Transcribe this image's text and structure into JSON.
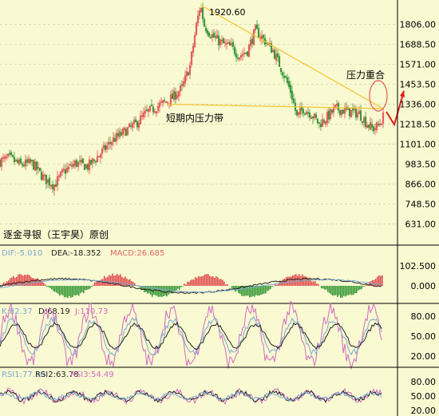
{
  "chart_data": {
    "type": "candlestick",
    "credit": "逐金寻银（王宇昊）原创",
    "main": {
      "y_ticks": [
        631.0,
        748.5,
        866.0,
        983.5,
        1101.0,
        1218.5,
        1336.0,
        1453.5,
        1571.0,
        1688.5,
        1806.0
      ],
      "y_tick_labels": [
        "631.00",
        "748.50",
        "866.00",
        "983.50",
        "1101.00",
        "1218.50",
        "1336.00",
        "1453.50",
        "1571.00",
        "1688.50",
        "1806.00"
      ],
      "ylim": [
        540,
        1930
      ],
      "peak_label": "1920.60",
      "annotations": {
        "short_term_resistance": "短期内压力带",
        "resistance_overlap": "压力重合"
      },
      "path_points": [
        [
          0,
          1000
        ],
        [
          12,
          1020
        ],
        [
          25,
          980
        ],
        [
          40,
          990
        ],
        [
          55,
          900
        ],
        [
          68,
          860
        ],
        [
          80,
          940
        ],
        [
          95,
          990
        ],
        [
          110,
          970
        ],
        [
          125,
          1040
        ],
        [
          140,
          1120
        ],
        [
          155,
          1170
        ],
        [
          170,
          1220
        ],
        [
          185,
          1290
        ],
        [
          200,
          1330
        ],
        [
          215,
          1370
        ],
        [
          228,
          1430
        ],
        [
          238,
          1560
        ],
        [
          246,
          1800
        ],
        [
          251,
          1920
        ],
        [
          256,
          1800
        ],
        [
          262,
          1760
        ],
        [
          270,
          1720
        ],
        [
          280,
          1690
        ],
        [
          290,
          1670
        ],
        [
          300,
          1620
        ],
        [
          310,
          1650
        ],
        [
          320,
          1770
        ],
        [
          330,
          1720
        ],
        [
          342,
          1650
        ],
        [
          355,
          1520
        ],
        [
          365,
          1400
        ],
        [
          372,
          1260
        ],
        [
          380,
          1310
        ],
        [
          390,
          1280
        ],
        [
          400,
          1220
        ],
        [
          410,
          1260
        ],
        [
          420,
          1310
        ],
        [
          430,
          1300
        ],
        [
          440,
          1290
        ],
        [
          450,
          1280
        ],
        [
          460,
          1220
        ],
        [
          467,
          1190
        ],
        [
          474,
          1210
        ],
        [
          480,
          1260
        ]
      ],
      "resistance_lines": {
        "trend": [
          [
            251,
            1920
          ],
          [
            480,
            1310
          ]
        ],
        "horizontal": [
          [
            210,
            1336
          ],
          [
            480,
            1310
          ]
        ]
      }
    },
    "macd": {
      "label_dif": "DIF:-5.010",
      "label_dea": "DEA:-18.352",
      "label_macd": "MACD:26.685",
      "y_ticks": [
        102.5,
        0.0
      ],
      "y_tick_labels": [
        "102.500",
        "0.000"
      ]
    },
    "kdj": {
      "label_k": "K:82.37",
      "label_d": "D:68.19",
      "label_j": "J:110.73",
      "y_ticks": [
        80,
        50,
        20
      ],
      "y_tick_labels": [
        "80.00",
        "50.00",
        "20.00"
      ]
    },
    "rsi": {
      "label_rsi1": "RSI1:77.50",
      "label_rsi2": "RSI2:63.78",
      "label_rsi3": "RSI3:54.49",
      "y_ticks": [
        80,
        50,
        20
      ],
      "y_tick_labels": [
        "80.00",
        "50.00",
        "20.00"
      ]
    }
  }
}
